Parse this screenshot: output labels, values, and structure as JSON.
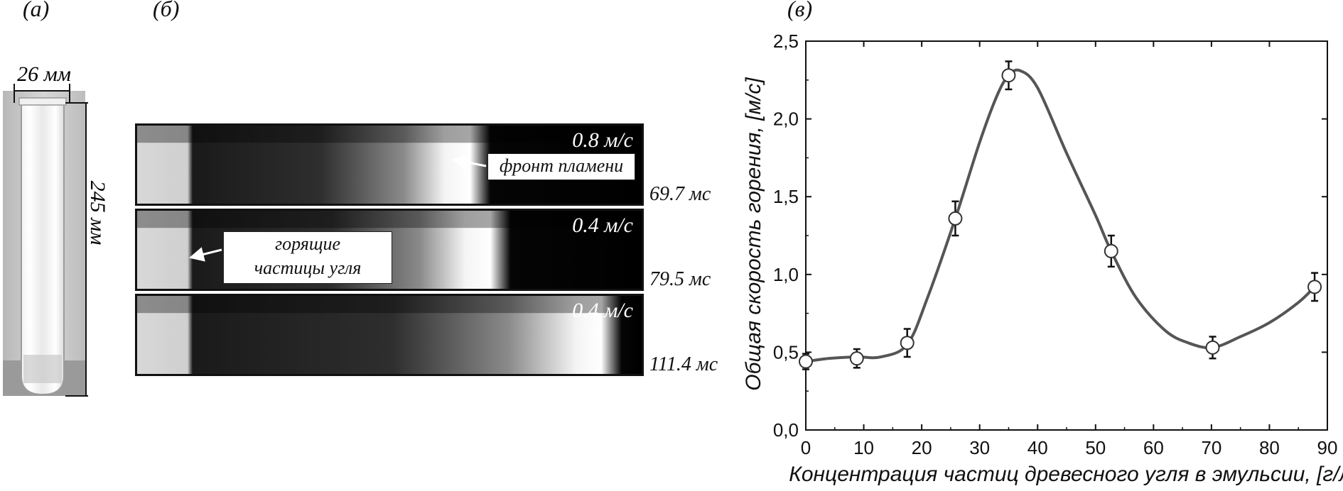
{
  "panels": {
    "a": {
      "label": "(а)",
      "width_label": "26 мм",
      "height_label": "245 мм"
    },
    "b": {
      "label": "(б)",
      "frames": [
        {
          "speed": "0.8 м/с",
          "time": "69.7 мс",
          "flame_fraction": 0.66
        },
        {
          "speed": "0.4 м/с",
          "time": "79.5 мс",
          "flame_fraction": 0.7
        },
        {
          "speed": "0.4 м/с",
          "time": "111.4 мс",
          "flame_fraction": 0.92
        }
      ],
      "annotations": {
        "flame_front": "фронт пламени",
        "burning_particles_line1": "горящие",
        "burning_particles_line2": "частицы угля"
      }
    },
    "c": {
      "label": "(в)"
    }
  },
  "chart_data": {
    "type": "scatter",
    "title": "",
    "xlabel": "Концентрация частиц древесного угля в эмульсии, [г/л]",
    "ylabel": "Общая скорость горения, [м/с]",
    "xlim": [
      0,
      90
    ],
    "ylim": [
      0,
      2.5
    ],
    "x_ticks": [
      0,
      10,
      20,
      30,
      40,
      50,
      60,
      70,
      80,
      90
    ],
    "y_ticks": [
      "0,0",
      "0,5",
      "1,0",
      "1,5",
      "2,0",
      "2,5"
    ],
    "grid": false,
    "series": [
      {
        "x": [
          0,
          8.8,
          17.5,
          25.8,
          35,
          52.7,
          70.2,
          87.8
        ],
        "y": [
          0.44,
          0.46,
          0.56,
          1.36,
          2.28,
          1.15,
          0.53,
          0.92
        ],
        "error": [
          0.05,
          0.06,
          0.09,
          0.11,
          0.09,
          0.1,
          0.07,
          0.09
        ]
      }
    ],
    "curve": [
      [
        0,
        0.44
      ],
      [
        4,
        0.46
      ],
      [
        8.8,
        0.47
      ],
      [
        13,
        0.47
      ],
      [
        17.5,
        0.55
      ],
      [
        21,
        0.85
      ],
      [
        25.8,
        1.36
      ],
      [
        30,
        1.85
      ],
      [
        33,
        2.15
      ],
      [
        35,
        2.28
      ],
      [
        37,
        2.31
      ],
      [
        40,
        2.2
      ],
      [
        45,
        1.78
      ],
      [
        50,
        1.38
      ],
      [
        52.7,
        1.15
      ],
      [
        57,
        0.85
      ],
      [
        62,
        0.64
      ],
      [
        66,
        0.56
      ],
      [
        70.2,
        0.53
      ],
      [
        75,
        0.6
      ],
      [
        80,
        0.69
      ],
      [
        85,
        0.82
      ],
      [
        87.8,
        0.92
      ]
    ],
    "colors": {
      "curve": "#555555",
      "markers": "#333333"
    }
  }
}
